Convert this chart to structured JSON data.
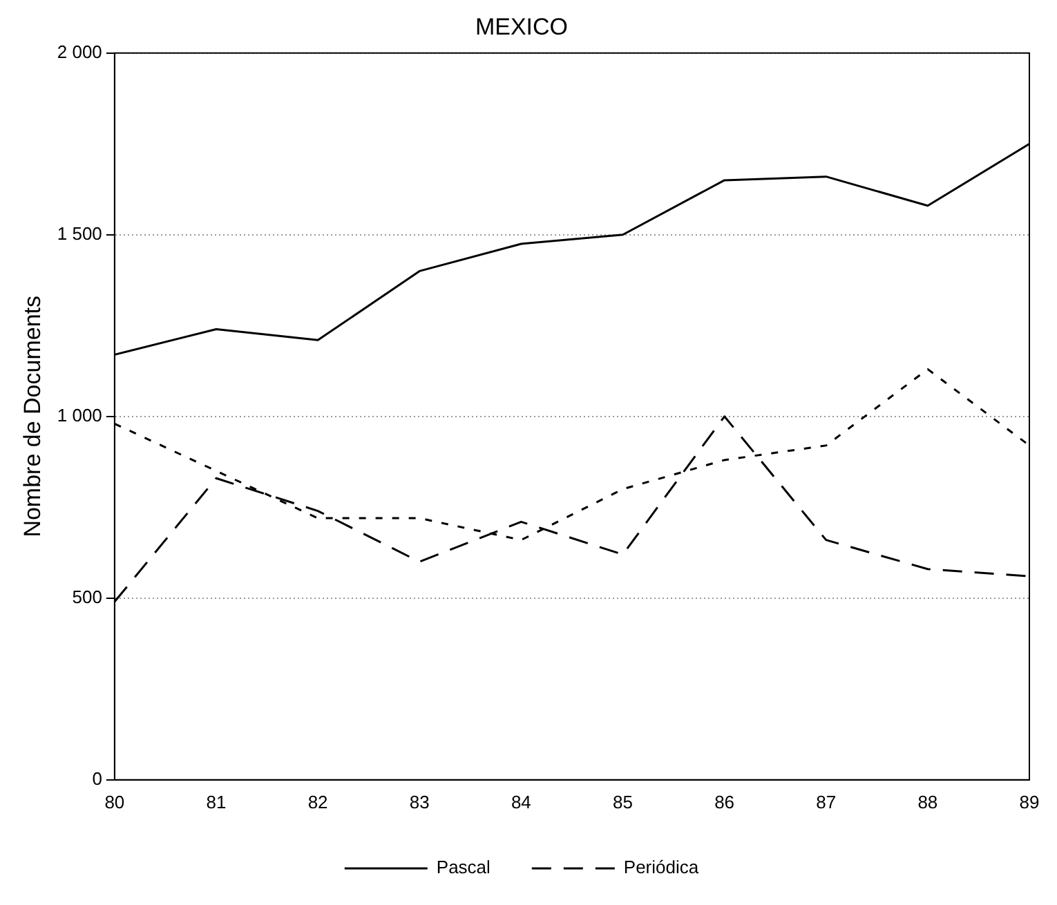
{
  "chart_data": {
    "type": "line",
    "title": "MEXICO",
    "ylabel": "Nombre de Documents",
    "categories": [
      "80",
      "81",
      "82",
      "83",
      "84",
      "85",
      "86",
      "87",
      "88",
      "89"
    ],
    "series": [
      {
        "name": "Pascal",
        "color": "#000000",
        "line_style": "solid",
        "values": [
          1170,
          1240,
          1210,
          1400,
          1475,
          1500,
          1650,
          1660,
          1580,
          1750
        ]
      },
      {
        "color": "#000000",
        "line_style": "dotted",
        "values": [
          980,
          850,
          720,
          720,
          660,
          800,
          880,
          920,
          1130,
          920
        ]
      },
      {
        "name": "Periódica",
        "color": "#000000",
        "line_style": "dashed",
        "values": [
          490,
          830,
          740,
          600,
          710,
          620,
          1000,
          660,
          580,
          560
        ]
      }
    ],
    "ylim": [
      0,
      2000
    ],
    "yticks": [
      {
        "value": 0,
        "label": "0"
      },
      {
        "value": 500,
        "label": "500"
      },
      {
        "value": 1000,
        "label": "1 000"
      },
      {
        "value": 1500,
        "label": "1 500"
      },
      {
        "value": 2000,
        "label": "2 000"
      }
    ],
    "grid": "y",
    "legend": "bottom",
    "marker": "none"
  }
}
